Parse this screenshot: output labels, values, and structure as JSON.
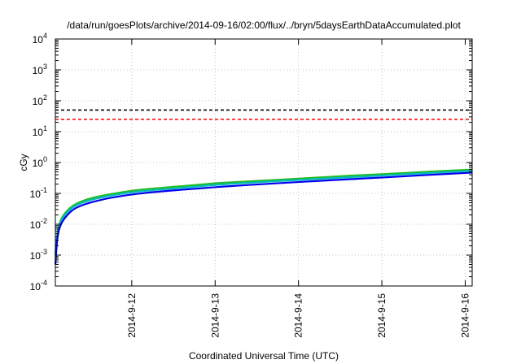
{
  "chart_data": {
    "type": "line",
    "title": "/data/run/goesPlots/archive/2014-09-16/02:00/flux/../bryn/5daysEarthDataAccumulated.plot",
    "xlabel": "Coordinated Universal Time (UTC)",
    "ylabel": "cGy",
    "y_scale": "log",
    "ylim": [
      0.0001,
      10000
    ],
    "xlim": [
      "2014-09-11 02:00",
      "2014-09-16 02:00"
    ],
    "y_ticks": [
      {
        "value": 0.0001,
        "base": "10",
        "exp": "-4"
      },
      {
        "value": 0.001,
        "base": "10",
        "exp": "-3"
      },
      {
        "value": 0.01,
        "base": "10",
        "exp": "-2"
      },
      {
        "value": 0.1,
        "base": "10",
        "exp": "-1"
      },
      {
        "value": 1,
        "base": "10",
        "exp": "0"
      },
      {
        "value": 10,
        "base": "10",
        "exp": "1"
      },
      {
        "value": 100,
        "base": "10",
        "exp": "2"
      },
      {
        "value": 1000,
        "base": "10",
        "exp": "3"
      },
      {
        "value": 10000,
        "base": "10",
        "exp": "4"
      }
    ],
    "x_ticks": [
      {
        "value": "2014-09-12 00:00",
        "label": "2014-9-12"
      },
      {
        "value": "2014-09-13 00:00",
        "label": "2014-9-13"
      },
      {
        "value": "2014-09-14 00:00",
        "label": "2014-9-14"
      },
      {
        "value": "2014-09-15 00:00",
        "label": "2014-9-15"
      },
      {
        "value": "2014-09-16 00:00",
        "label": "2014-9-16"
      }
    ],
    "grid": true,
    "legend": "none",
    "thresholds": [
      {
        "y": 50,
        "color": "#000000",
        "style": "dashed"
      },
      {
        "y": 25,
        "color": "#ff0000",
        "style": "dashed"
      }
    ],
    "series": [
      {
        "color": "#22bb22",
        "x": [
          "2014-09-11 02:00",
          "2014-09-11 02:30",
          "2014-09-11 03:00",
          "2014-09-11 04:00",
          "2014-09-11 06:00",
          "2014-09-11 08:00",
          "2014-09-11 12:00",
          "2014-09-11 18:00",
          "2014-09-12 02:00",
          "2014-09-12 14:00",
          "2014-09-13 02:00",
          "2014-09-13 14:00",
          "2014-09-14 02:00",
          "2014-09-14 14:00",
          "2014-09-15 02:00",
          "2014-09-15 14:00",
          "2014-09-16 02:00"
        ],
        "y": [
          0.0011,
          0.0042,
          0.0085,
          0.017,
          0.032,
          0.046,
          0.068,
          0.095,
          0.13,
          0.17,
          0.22,
          0.26,
          0.31,
          0.37,
          0.43,
          0.51,
          0.59
        ]
      },
      {
        "color": "#00bbbb",
        "x": [
          "2014-09-11 02:00",
          "2014-09-11 02:30",
          "2014-09-11 03:00",
          "2014-09-11 04:00",
          "2014-09-11 06:00",
          "2014-09-11 08:00",
          "2014-09-11 12:00",
          "2014-09-11 18:00",
          "2014-09-12 02:00",
          "2014-09-12 14:00",
          "2014-09-13 02:00",
          "2014-09-13 14:00",
          "2014-09-14 02:00",
          "2014-09-14 14:00",
          "2014-09-15 02:00",
          "2014-09-15 14:00",
          "2014-09-16 02:00"
        ],
        "y": [
          0.0009,
          0.0036,
          0.0074,
          0.015,
          0.028,
          0.041,
          0.06,
          0.085,
          0.115,
          0.15,
          0.195,
          0.235,
          0.28,
          0.33,
          0.39,
          0.46,
          0.54
        ]
      },
      {
        "color": "#0000ee",
        "x": [
          "2014-09-11 02:00",
          "2014-09-11 02:30",
          "2014-09-11 03:00",
          "2014-09-11 04:00",
          "2014-09-11 06:00",
          "2014-09-11 08:00",
          "2014-09-11 12:00",
          "2014-09-11 18:00",
          "2014-09-12 02:00",
          "2014-09-12 14:00",
          "2014-09-13 02:00",
          "2014-09-13 14:00",
          "2014-09-14 02:00",
          "2014-09-14 14:00",
          "2014-09-15 02:00",
          "2014-09-15 14:00",
          "2014-09-16 02:00"
        ],
        "y": [
          0.0005,
          0.0028,
          0.0062,
          0.012,
          0.023,
          0.034,
          0.05,
          0.072,
          0.098,
          0.13,
          0.165,
          0.2,
          0.24,
          0.285,
          0.335,
          0.4,
          0.47
        ]
      }
    ]
  }
}
